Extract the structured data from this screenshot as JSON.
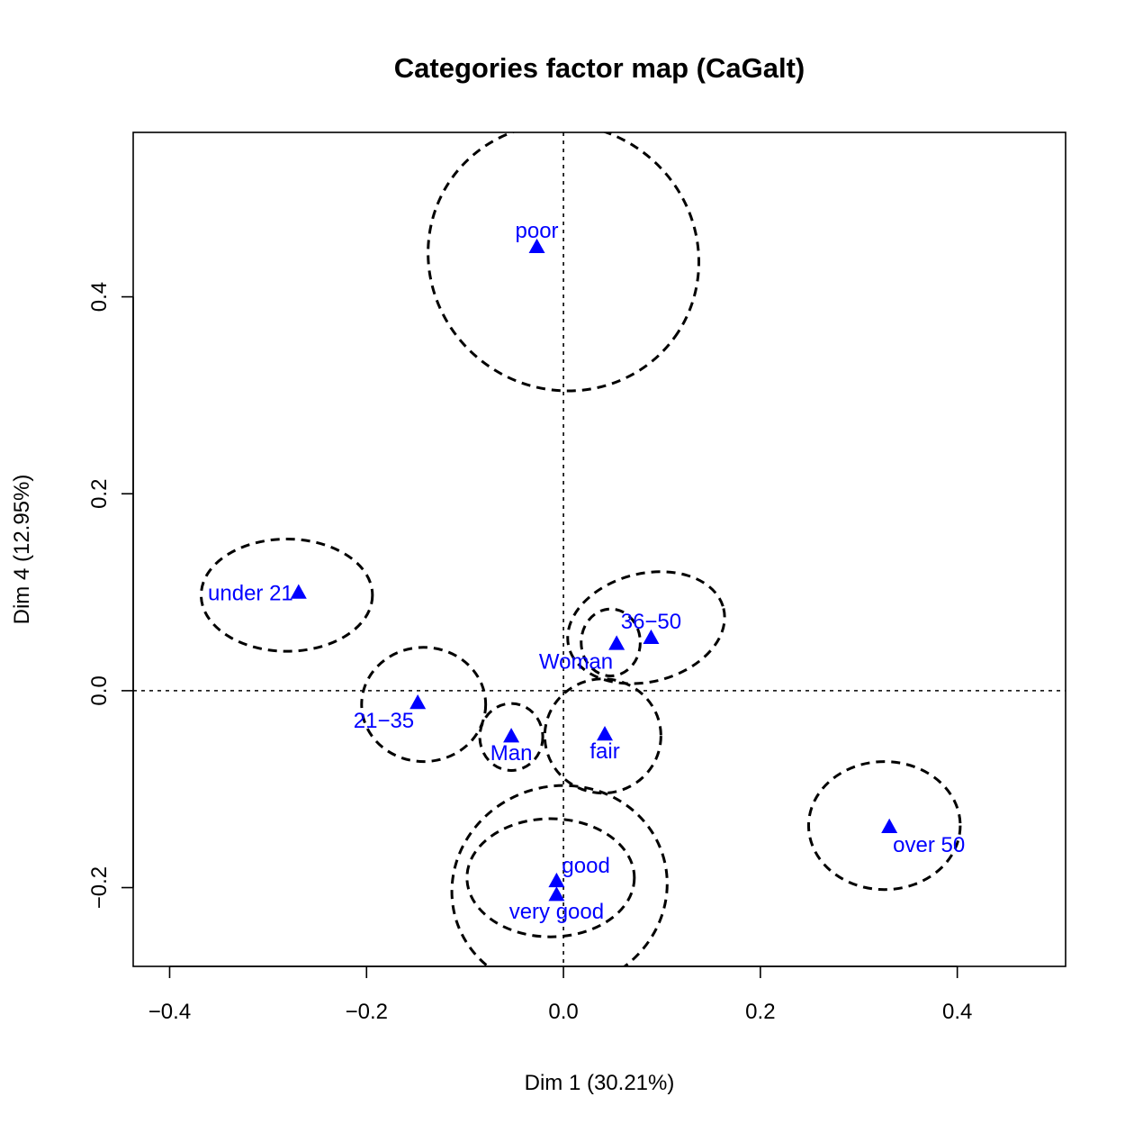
{
  "chart_data": {
    "type": "scatter",
    "title": "Categories factor map (CaGalt)",
    "xlabel": "Dim 1 (30.21%)",
    "ylabel": "Dim 4 (12.95%)",
    "xlim": [
      -0.437,
      0.51
    ],
    "ylim": [
      -0.28,
      0.567
    ],
    "xticks": [
      -0.4,
      -0.2,
      0.0,
      0.2,
      0.4
    ],
    "yticks": [
      -0.2,
      0.0,
      0.2,
      0.4
    ],
    "xtick_labels": [
      "−0.4",
      "−0.2",
      "0.0",
      "0.2",
      "0.4"
    ],
    "ytick_labels": [
      "−0.2",
      "0.0",
      "0.2",
      "0.4"
    ],
    "reference_lines": {
      "x": 0,
      "y": 0
    },
    "point_color": "#0000ff",
    "ellipse_style": "dashed",
    "points": [
      {
        "label": "poor",
        "x": -0.027,
        "y": 0.451,
        "label_pos": "above"
      },
      {
        "label": "under 21",
        "x": -0.269,
        "y": 0.1,
        "label_pos": "left"
      },
      {
        "label": "36−50",
        "x": 0.089,
        "y": 0.054,
        "label_pos": "above"
      },
      {
        "label": "Woman",
        "x": 0.054,
        "y": 0.048,
        "label_pos": "below-left"
      },
      {
        "label": "21−35",
        "x": -0.148,
        "y": -0.012,
        "label_pos": "below-left"
      },
      {
        "label": "Man",
        "x": -0.053,
        "y": -0.046,
        "label_pos": "below"
      },
      {
        "label": "fair",
        "x": 0.042,
        "y": -0.044,
        "label_pos": "below"
      },
      {
        "label": "over 50",
        "x": 0.331,
        "y": -0.138,
        "label_pos": "below-right"
      },
      {
        "label": "good",
        "x": -0.007,
        "y": -0.193,
        "label_pos": "right"
      },
      {
        "label": "very good",
        "x": -0.007,
        "y": -0.207,
        "label_pos": "below"
      }
    ],
    "ellipses": [
      {
        "for": "poor",
        "cx": 0.0,
        "cy": 0.44,
        "rx": 0.139,
        "ry": 0.134,
        "rotation": 33
      },
      {
        "for": "under 21",
        "cx": -0.281,
        "cy": 0.097,
        "rx": 0.087,
        "ry": 0.057,
        "rotation": 0
      },
      {
        "for": "36−50",
        "cx": 0.084,
        "cy": 0.064,
        "rx": 0.081,
        "ry": 0.055,
        "rotation": -14
      },
      {
        "for": "Woman",
        "cx": 0.048,
        "cy": 0.049,
        "rx": 0.03,
        "ry": 0.034,
        "rotation": 0
      },
      {
        "for": "21−35",
        "cx": -0.142,
        "cy": -0.014,
        "rx": 0.063,
        "ry": 0.058,
        "rotation": 0
      },
      {
        "for": "Man",
        "cx": -0.053,
        "cy": -0.047,
        "rx": 0.032,
        "ry": 0.034,
        "rotation": 0
      },
      {
        "for": "fair",
        "cx": 0.04,
        "cy": -0.046,
        "rx": 0.059,
        "ry": 0.058,
        "rotation": 0
      },
      {
        "for": "over 50",
        "cx": 0.326,
        "cy": -0.137,
        "rx": 0.077,
        "ry": 0.065,
        "rotation": 0
      },
      {
        "for": "good",
        "cx": -0.013,
        "cy": -0.19,
        "rx": 0.085,
        "ry": 0.06,
        "rotation": 0
      },
      {
        "for": "very good",
        "cx": -0.004,
        "cy": -0.2,
        "rx": 0.11,
        "ry": 0.103,
        "rotation": -18
      }
    ]
  }
}
